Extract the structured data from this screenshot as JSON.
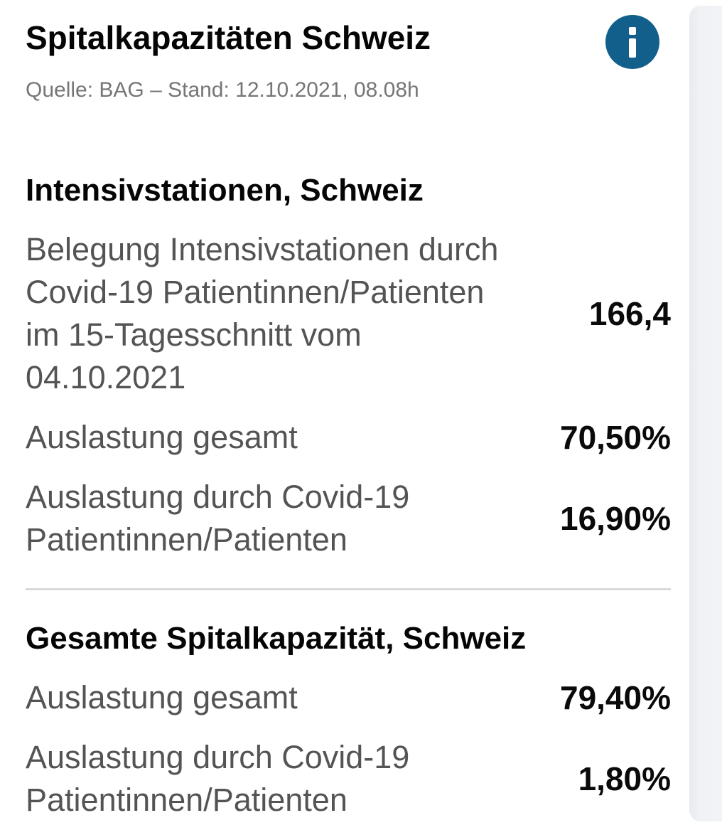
{
  "header": {
    "title": "Spitalkapazitäten Schweiz",
    "source": "Quelle: BAG – Stand: 12.10.2021, 08.08h",
    "info_icon": "info-i",
    "info_color": "#135f8c"
  },
  "sections": [
    {
      "heading": "Intensivstationen, Schweiz",
      "rows": [
        {
          "label": "Belegung Intensivstationen durch Covid-19 Patientinnen/Patienten im 15-Tagesschnitt vom 04.10.2021",
          "value": "166,4"
        },
        {
          "label": "Auslastung gesamt",
          "value": "70,50%"
        },
        {
          "label": "Auslastung durch Covid-19 Patientinnen/Patienten",
          "value": "16,90%"
        }
      ]
    },
    {
      "heading": "Gesamte Spitalkapazität, Schweiz",
      "rows": [
        {
          "label": "Auslastung gesamt",
          "value": "79,40%"
        },
        {
          "label": "Auslastung durch Covid-19 Patientinnen/Patienten",
          "value": "1,80%"
        }
      ]
    }
  ]
}
